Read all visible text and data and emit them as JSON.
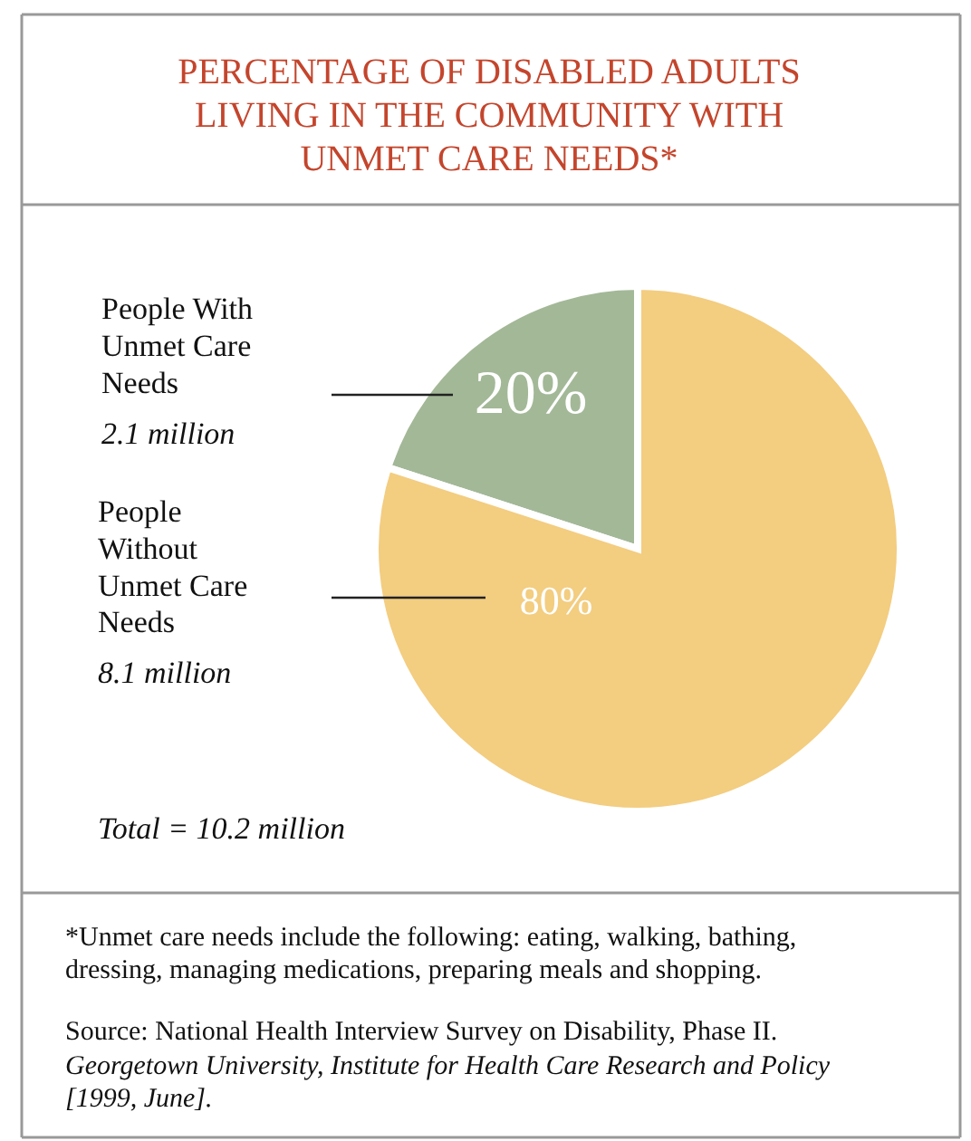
{
  "chart_data": {
    "type": "pie",
    "title": "PERCENTAGE OF DISABLED ADULTS LIVING IN THE COMMUNITY WITH UNMET CARE NEEDS*",
    "categories": [
      "People With Unmet Care Needs",
      "People Without Unmet Care Needs"
    ],
    "values": [
      20,
      80
    ],
    "colors": [
      "#a3b897",
      "#f3cd80"
    ],
    "value_labels": [
      "20%",
      "80%"
    ],
    "annotations": [
      "2.1 million",
      "8.1 million",
      "Total = 10.2 million",
      "*Unmet care needs include the following: eating, walking, bathing, dressing, managing medications, preparing meals and shopping.",
      "Source: National Health Interview Survey on Disability, Phase II.",
      "Georgetown University, Institute for Health Care Research and Policy [1999, June]."
    ]
  }
}
